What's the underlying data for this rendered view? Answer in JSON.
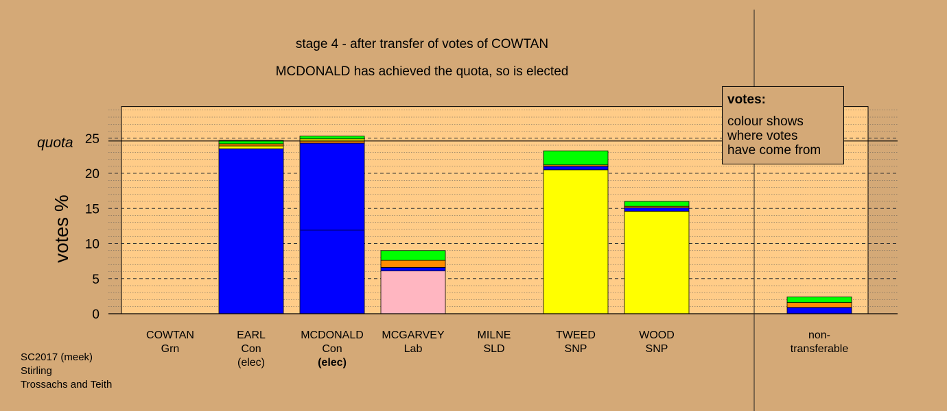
{
  "title_line1": "stage 4 - after transfer of votes of COWTAN",
  "title_line2": "MCDONALD has achieved the quota, so is elected",
  "legend": {
    "title": "votes:",
    "lines": [
      "colour shows",
      "where votes",
      "have come from"
    ]
  },
  "footer": [
    "SC2017 (meek)",
    "Stirling",
    "Trossachs and Teith"
  ],
  "colors": {
    "background": "#d4a977",
    "plot_area": "#ffcc88",
    "Con": "#0000ff",
    "SNP": "#ffff00",
    "Lab": "#ffb6c1",
    "Grn": "#00ff00",
    "SLD": "#ff8c00",
    "separator": "#000080"
  },
  "chart_data": {
    "type": "bar",
    "stacked": true,
    "ylabel": "votes %",
    "ylim": [
      0,
      29.5
    ],
    "yticks": [
      0,
      5,
      10,
      15,
      20,
      25
    ],
    "quota": 24.6,
    "quota_label": "quota",
    "grid": true,
    "candidates": [
      {
        "name": "COWTAN",
        "party": "Grn",
        "elected": "",
        "elected_bold": false,
        "segments": []
      },
      {
        "name": "EARL",
        "party": "Con",
        "elected": "(elec)",
        "elected_bold": false,
        "segments": [
          {
            "source": "Con",
            "value": 23.5
          },
          {
            "source": "SNP",
            "value": 0.4
          },
          {
            "source": "SLD",
            "value": 0.3
          },
          {
            "source": "Grn",
            "value": 0.5
          }
        ]
      },
      {
        "name": "MCDONALD",
        "party": "Con",
        "elected": "(elec)",
        "elected_bold": true,
        "internal_marks": [
          11.9
        ],
        "segments": [
          {
            "source": "Con",
            "value": 24.3
          },
          {
            "source": "SLD",
            "value": 0.3
          },
          {
            "source": "SNP",
            "value": 0.3
          },
          {
            "source": "Grn",
            "value": 0.4
          }
        ]
      },
      {
        "name": "MCGARVEY",
        "party": "Lab",
        "elected": "",
        "elected_bold": false,
        "segments": [
          {
            "source": "Lab",
            "value": 6.1
          },
          {
            "source": "Con",
            "value": 0.5
          },
          {
            "source": "SLD",
            "value": 1.0
          },
          {
            "source": "Grn",
            "value": 1.4
          }
        ]
      },
      {
        "name": "MILNE",
        "party": "SLD",
        "elected": "",
        "elected_bold": false,
        "segments": []
      },
      {
        "name": "TWEED",
        "party": "SNP",
        "elected": "",
        "elected_bold": false,
        "segments": [
          {
            "source": "SNP",
            "value": 20.5
          },
          {
            "source": "Con",
            "value": 0.5
          },
          {
            "source": "SLD",
            "value": 0.2
          },
          {
            "source": "Grn",
            "value": 2.0
          }
        ]
      },
      {
        "name": "WOOD",
        "party": "SNP",
        "elected": "",
        "elected_bold": false,
        "segments": [
          {
            "source": "SNP",
            "value": 14.6
          },
          {
            "source": "Con",
            "value": 0.5
          },
          {
            "source": "SLD",
            "value": 0.2
          },
          {
            "source": "Grn",
            "value": 0.7
          }
        ]
      }
    ],
    "nontransferable": {
      "label_lines": [
        "non-",
        "transferable"
      ],
      "segments": [
        {
          "source": "Con",
          "value": 0.9
        },
        {
          "source": "SLD",
          "value": 0.7
        },
        {
          "source": "Grn",
          "value": 0.8
        }
      ]
    }
  }
}
